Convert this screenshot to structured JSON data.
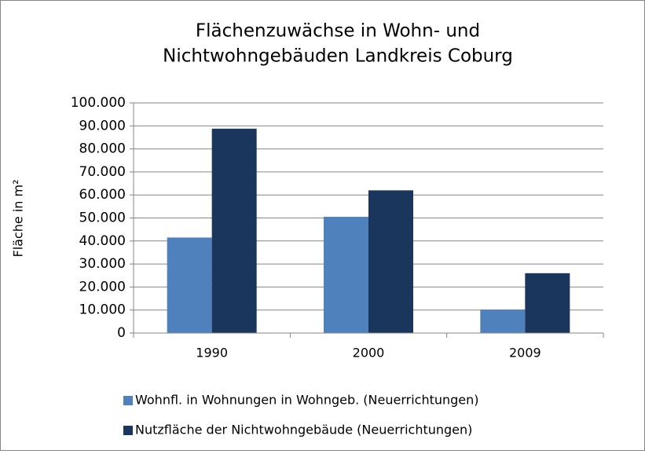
{
  "chart_data": {
    "type": "bar",
    "title": [
      "Flächenzuwächse in Wohn- und",
      "Nichtwohngebäuden Landkreis Coburg"
    ],
    "y_label": "Fläche in m²",
    "categories": [
      "1990",
      "2000",
      "2009"
    ],
    "series": [
      {
        "name": "Wohnfl. in Wohnungen in Wohngeb. (Neuerrichtungen)",
        "color": "#4f81bd",
        "values": [
          41500,
          50500,
          10200
        ]
      },
      {
        "name": "Nutzfläche der Nichtwohngebäude (Neuerrichtungen)",
        "color": "#1b365d",
        "values": [
          88800,
          62000,
          26000
        ]
      }
    ],
    "ylim": [
      0,
      100000
    ],
    "yticks": [
      0,
      {
        "value": 10000,
        "label": "10.000"
      },
      {
        "value": 20000,
        "label": "20.000"
      },
      {
        "value": 30000,
        "label": "30.000"
      },
      {
        "value": 40000,
        "label": "40.000"
      },
      {
        "value": 50000,
        "label": "50.000"
      },
      {
        "value": 60000,
        "label": "60.000"
      },
      {
        "value": 70000,
        "label": "70.000"
      },
      {
        "value": 80000,
        "label": "80.000"
      },
      {
        "value": 90000,
        "label": "90.000"
      },
      {
        "value": 100000,
        "label": "100.000"
      }
    ],
    "grid": true,
    "legend": "bottom"
  }
}
